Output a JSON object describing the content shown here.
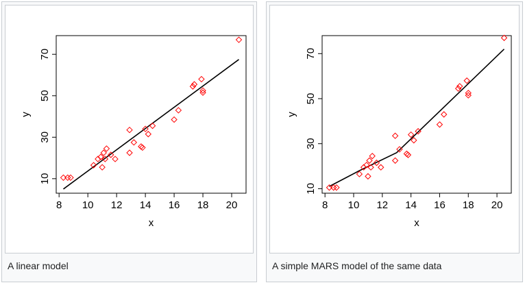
{
  "figures": [
    {
      "caption": "A linear model"
    },
    {
      "caption": "A simple MARS model of the same data"
    }
  ],
  "chart_data": [
    {
      "type": "scatter",
      "title": "",
      "xlabel": "x",
      "ylabel": "y",
      "xlim": [
        7.8,
        21
      ],
      "ylim": [
        3,
        79
      ],
      "xticks": [
        8,
        10,
        12,
        14,
        16,
        18,
        20
      ],
      "yticks": [
        10,
        30,
        50,
        70
      ],
      "points": {
        "x": [
          8.3,
          8.6,
          8.8,
          10.4,
          10.7,
          10.9,
          11.0,
          11.1,
          11.2,
          11.3,
          11.6,
          11.9,
          12.9,
          12.9,
          13.2,
          13.7,
          13.8,
          14.0,
          14.2,
          14.5,
          16.0,
          16.3,
          17.3,
          17.4,
          17.9,
          18.0,
          18.0,
          20.5
        ],
        "y": [
          10.5,
          10.5,
          10.5,
          16.5,
          19.5,
          20.5,
          15.5,
          22.5,
          19.5,
          24.5,
          21.5,
          19.5,
          22.5,
          33.5,
          27.5,
          25.5,
          25.0,
          34.0,
          31.5,
          35.5,
          38.5,
          43.0,
          54.5,
          55.5,
          58.0,
          51.5,
          52.5,
          77.0
        ],
        "color": "#ff0000",
        "marker": "diamond"
      },
      "fit": {
        "name": "A linear model",
        "x": [
          8.3,
          20.5
        ],
        "y": [
          5,
          67.5
        ],
        "color": "#000000"
      }
    },
    {
      "type": "scatter",
      "title": "",
      "xlabel": "x",
      "ylabel": "y",
      "xlim": [
        7.8,
        21
      ],
      "ylim": [
        8,
        78
      ],
      "xticks": [
        8,
        10,
        12,
        14,
        16,
        18,
        20
      ],
      "yticks": [
        10,
        30,
        50,
        70
      ],
      "points": {
        "x": [
          8.3,
          8.6,
          8.8,
          10.4,
          10.7,
          10.9,
          11.0,
          11.1,
          11.2,
          11.3,
          11.6,
          11.9,
          12.9,
          12.9,
          13.2,
          13.7,
          13.8,
          14.0,
          14.2,
          14.5,
          16.0,
          16.3,
          17.3,
          17.4,
          17.9,
          18.0,
          18.0,
          20.5
        ],
        "y": [
          10.5,
          10.5,
          10.5,
          16.5,
          19.5,
          20.5,
          15.5,
          22.5,
          19.5,
          24.5,
          21.5,
          19.5,
          22.5,
          33.5,
          27.5,
          25.5,
          25.0,
          34.0,
          31.5,
          35.5,
          38.5,
          43.0,
          54.5,
          55.5,
          58.0,
          51.5,
          52.5,
          77.0
        ],
        "color": "#ff0000",
        "marker": "diamond"
      },
      "fit": {
        "name": "A simple MARS model of the same data",
        "x": [
          8.3,
          10.4,
          13.0,
          20.5
        ],
        "y": [
          11,
          18,
          26,
          72
        ],
        "color": "#000000"
      }
    }
  ]
}
